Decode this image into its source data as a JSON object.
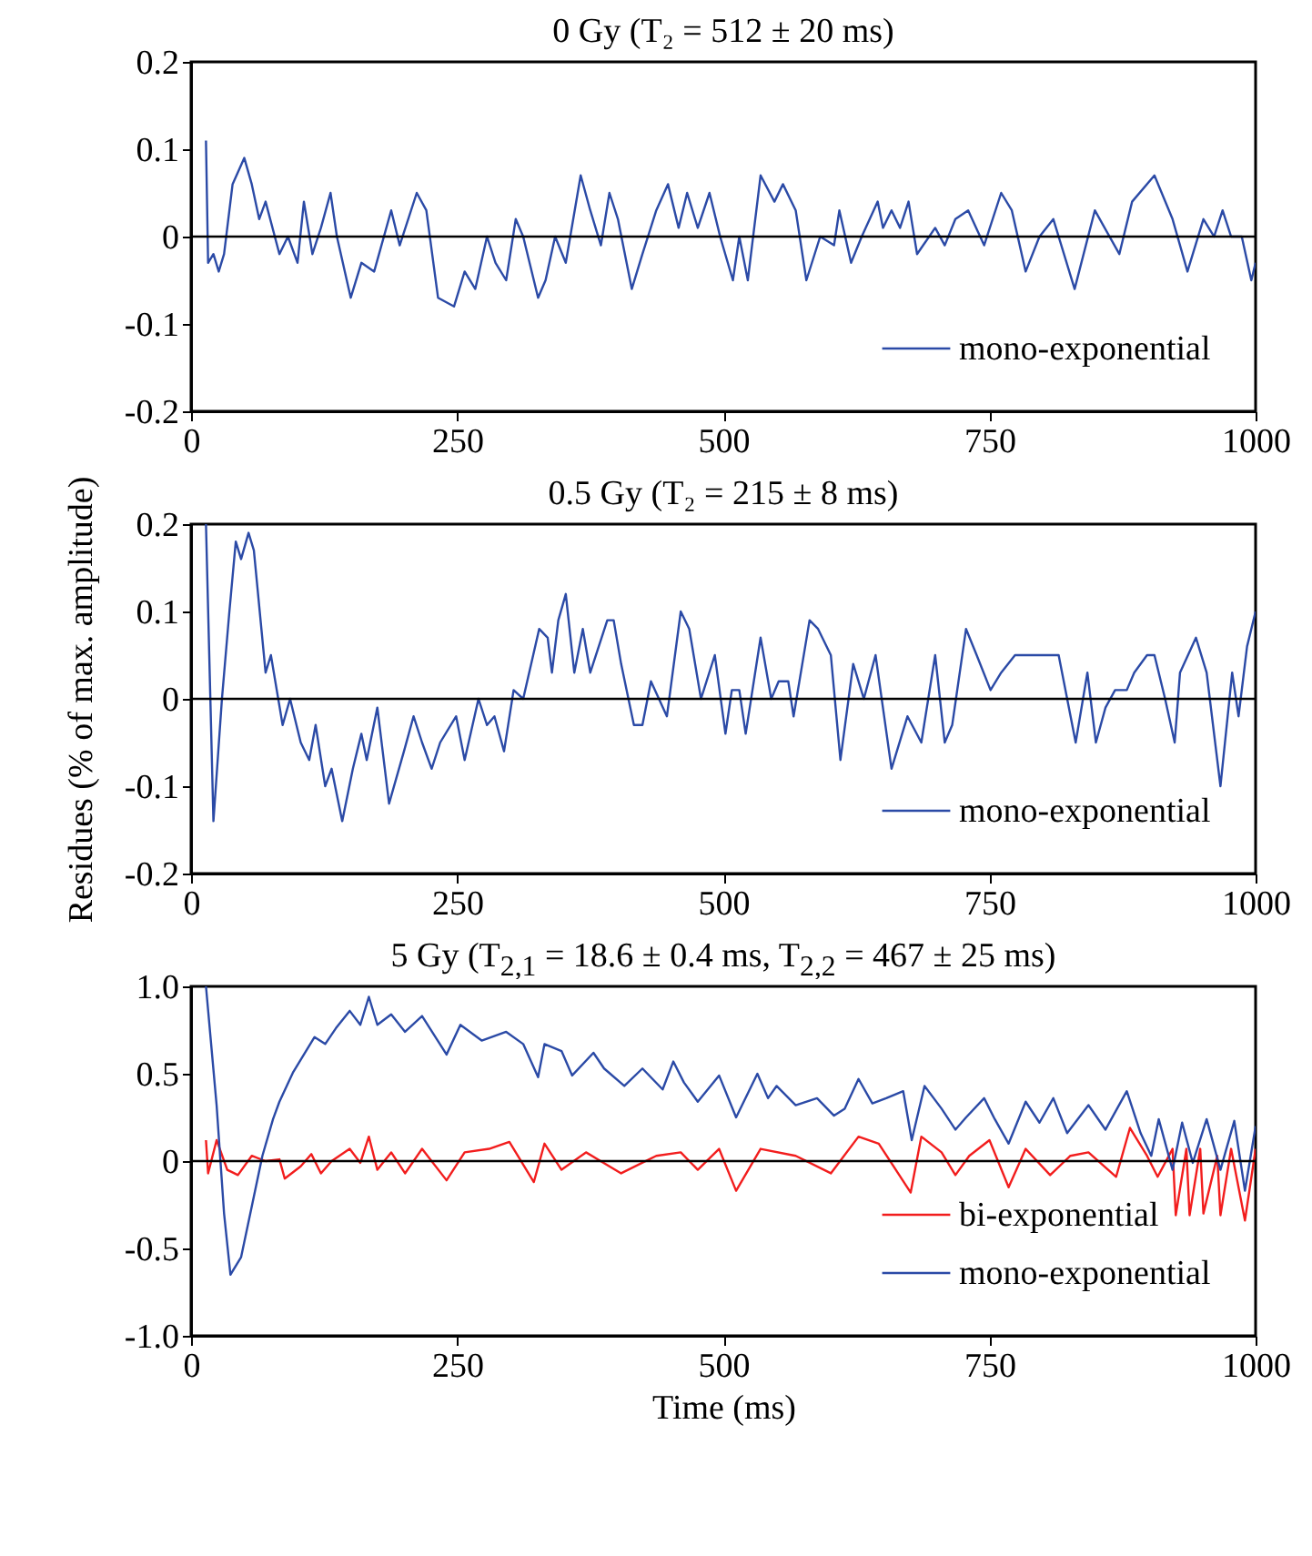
{
  "chart_data": [
    {
      "type": "line",
      "title": "0 Gy (T₂ = 512 ± 20 ms)",
      "xlim": [
        0,
        1000
      ],
      "xticks": [
        0,
        250,
        500,
        750,
        1000
      ],
      "ylim": [
        -0.2,
        0.2
      ],
      "yticks": [
        -0.2,
        -0.1,
        0,
        0.1,
        0.2
      ],
      "legend": "bottom right",
      "ref_lines": [
        {
          "axis": "y",
          "value": 0,
          "color": "#000000"
        }
      ],
      "series": [
        {
          "name": "mono-exponential",
          "color": "#2b4aa6",
          "x": [
            14,
            16,
            21,
            26,
            31,
            39,
            50,
            57,
            64,
            70,
            83,
            91,
            100,
            106,
            114,
            122,
            131,
            137,
            150,
            160,
            172,
            188,
            196,
            212,
            221,
            232,
            247,
            257,
            267,
            278,
            286,
            296,
            305,
            312,
            326,
            333,
            342,
            352,
            366,
            375,
            385,
            393,
            401,
            414,
            424,
            437,
            448,
            458,
            466,
            476,
            487,
            497,
            509,
            515,
            523,
            535,
            548,
            556,
            568,
            578,
            591,
            604,
            609,
            620,
            630,
            645,
            650,
            658,
            666,
            674,
            682,
            699,
            708,
            718,
            730,
            745,
            761,
            771,
            784,
            797,
            810,
            830,
            849,
            872,
            884,
            905,
            922,
            936,
            951,
            961,
            969,
            977,
            987,
            996,
            1000
          ],
          "values": [
            0.11,
            -0.03,
            -0.02,
            -0.04,
            -0.02,
            0.06,
            0.09,
            0.06,
            0.02,
            0.04,
            -0.02,
            0,
            -0.03,
            0.04,
            -0.02,
            0.01,
            0.05,
            0,
            -0.07,
            -0.03,
            -0.04,
            0.03,
            -0.01,
            0.05,
            0.03,
            -0.07,
            -0.08,
            -0.04,
            -0.06,
            0,
            -0.03,
            -0.05,
            0.02,
            0,
            -0.07,
            -0.05,
            0,
            -0.03,
            0.07,
            0.03,
            -0.01,
            0.05,
            0.02,
            -0.06,
            -0.02,
            0.03,
            0.06,
            0.01,
            0.05,
            0.01,
            0.05,
            0,
            -0.05,
            0,
            -0.05,
            0.07,
            0.04,
            0.06,
            0.03,
            -0.05,
            0,
            -0.01,
            0.03,
            -0.03,
            0,
            0.04,
            0.01,
            0.03,
            0.01,
            0.04,
            -0.02,
            0.01,
            -0.01,
            0.02,
            0.03,
            -0.01,
            0.05,
            0.03,
            -0.04,
            0,
            0.02,
            -0.06,
            0.03,
            -0.02,
            0.04,
            0.07,
            0.02,
            -0.04,
            0.02,
            0,
            0.03,
            0,
            0,
            -0.05,
            -0.03
          ]
        }
      ]
    },
    {
      "type": "line",
      "title": "0.5 Gy (T₂ = 215 ± 8 ms)",
      "ylabel": "Residues (% of max. amplitude)",
      "xlim": [
        0,
        1000
      ],
      "xticks": [
        0,
        250,
        500,
        750,
        1000
      ],
      "ylim": [
        -0.2,
        0.2
      ],
      "yticks": [
        -0.2,
        -0.1,
        0,
        0.1,
        0.2
      ],
      "legend": "bottom right",
      "ref_lines": [
        {
          "axis": "y",
          "value": 0,
          "color": "#000000"
        }
      ],
      "series": [
        {
          "name": "mono-exponential",
          "color": "#2b4aa6",
          "x": [
            14,
            21,
            29,
            36,
            42,
            47,
            54,
            59,
            70,
            75,
            86,
            93,
            103,
            111,
            117,
            126,
            132,
            142,
            152,
            160,
            165,
            175,
            186,
            200,
            209,
            217,
            226,
            234,
            249,
            257,
            270,
            278,
            285,
            294,
            303,
            312,
            327,
            335,
            339,
            345,
            352,
            360,
            368,
            375,
            391,
            397,
            404,
            416,
            424,
            432,
            447,
            460,
            468,
            479,
            492,
            502,
            508,
            515,
            521,
            535,
            545,
            552,
            561,
            566,
            581,
            589,
            601,
            610,
            622,
            632,
            643,
            658,
            673,
            686,
            699,
            708,
            715,
            728,
            738,
            751,
            761,
            774,
            804,
            815,
            831,
            842,
            850,
            859,
            868,
            879,
            886,
            898,
            905,
            915,
            924,
            929,
            944,
            954,
            967,
            978,
            984,
            992,
            1000
          ],
          "values": [
            0.2,
            -0.14,
            0,
            0.1,
            0.18,
            0.16,
            0.19,
            0.17,
            0.03,
            0.05,
            -0.03,
            0,
            -0.05,
            -0.07,
            -0.03,
            -0.1,
            -0.08,
            -0.14,
            -0.08,
            -0.04,
            -0.07,
            -0.01,
            -0.12,
            -0.06,
            -0.02,
            -0.05,
            -0.08,
            -0.05,
            -0.02,
            -0.07,
            0,
            -0.03,
            -0.02,
            -0.06,
            0.01,
            0,
            0.08,
            0.07,
            0.03,
            0.09,
            0.12,
            0.03,
            0.08,
            0.03,
            0.09,
            0.09,
            0.04,
            -0.03,
            -0.03,
            0.02,
            -0.02,
            0.1,
            0.08,
            0,
            0.05,
            -0.04,
            0.01,
            0.01,
            -0.04,
            0.07,
            0,
            0.02,
            0.02,
            -0.02,
            0.09,
            0.08,
            0.05,
            -0.07,
            0.04,
            0,
            0.05,
            -0.08,
            -0.02,
            -0.05,
            0.05,
            -0.05,
            -0.03,
            0.08,
            0.05,
            0.01,
            0.03,
            0.05,
            0.05,
            0.05,
            -0.05,
            0.03,
            -0.05,
            -0.01,
            0.01,
            0.01,
            0.03,
            0.05,
            0.05,
            0,
            -0.05,
            0.03,
            0.07,
            0.03,
            -0.1,
            0.03,
            -0.02,
            0.06,
            0.1
          ]
        }
      ]
    },
    {
      "type": "line",
      "title": "5 Gy (T$_{2,1}$ = 18.6 ± 0.4 ms, T$_{2,2}$ = 467 ± 25 ms)",
      "xlabel": "Time (ms)",
      "xlim": [
        0,
        1000
      ],
      "xticks": [
        0,
        250,
        500,
        750,
        1000
      ],
      "ylim": [
        -1,
        1
      ],
      "yticks": [
        {
          "value": -1,
          "label": "-1.0"
        },
        {
          "value": -0.5,
          "label": "-0.5"
        },
        {
          "value": 0,
          "label": "0"
        },
        {
          "value": 0.5,
          "label": "0.5"
        },
        {
          "value": 1,
          "label": "1.0"
        }
      ],
      "legend": "bottom right",
      "ref_lines": [
        {
          "axis": "y",
          "value": 0,
          "color": "#000000"
        }
      ],
      "series": [
        {
          "name": "bi-exponential",
          "color": "#f21d1d",
          "x": [
            14,
            16,
            24,
            34,
            44,
            57,
            70,
            83,
            88,
            103,
            113,
            122,
            132,
            149,
            159,
            167,
            175,
            188,
            201,
            217,
            240,
            257,
            280,
            299,
            322,
            332,
            348,
            371,
            404,
            437,
            460,
            476,
            496,
            512,
            535,
            568,
            601,
            627,
            646,
            676,
            686,
            705,
            718,
            731,
            750,
            768,
            784,
            807,
            826,
            843,
            869,
            882,
            898,
            908,
            922,
            925,
            935,
            938,
            948,
            951,
            964,
            967,
            977,
            990,
            1000
          ],
          "values": [
            0.12,
            -0.07,
            0.12,
            -0.05,
            -0.08,
            0.03,
            0,
            0.01,
            -0.1,
            -0.03,
            0.04,
            -0.07,
            0,
            0.07,
            -0.01,
            0.14,
            -0.05,
            0.05,
            -0.07,
            0.07,
            -0.11,
            0.05,
            0.07,
            0.11,
            -0.12,
            0.1,
            -0.05,
            0.05,
            -0.07,
            0.03,
            0.05,
            -0.05,
            0.07,
            -0.17,
            0.07,
            0.03,
            -0.07,
            0.14,
            0.1,
            -0.18,
            0.14,
            0.05,
            -0.08,
            0.03,
            0.12,
            -0.15,
            0.07,
            -0.08,
            0.03,
            0.05,
            -0.09,
            0.19,
            0.03,
            -0.09,
            0.07,
            -0.31,
            0.07,
            -0.31,
            0.07,
            -0.3,
            0.03,
            -0.31,
            0.07,
            -0.34,
            0.07
          ]
        },
        {
          "name": "mono-exponential",
          "color": "#2b4aa6",
          "x": [
            14,
            24,
            31,
            37,
            47,
            57,
            67,
            77,
            83,
            96,
            116,
            126,
            136,
            149,
            159,
            167,
            175,
            188,
            201,
            217,
            240,
            253,
            273,
            296,
            312,
            326,
            332,
            348,
            358,
            378,
            388,
            407,
            424,
            443,
            453,
            463,
            476,
            496,
            512,
            532,
            542,
            550,
            568,
            588,
            604,
            614,
            627,
            640,
            653,
            669,
            677,
            689,
            705,
            718,
            728,
            745,
            755,
            768,
            784,
            797,
            810,
            823,
            843,
            859,
            879,
            892,
            902,
            909,
            922,
            931,
            941,
            954,
            967,
            980,
            990,
            1000
          ],
          "values": [
            1.0,
            0.32,
            -0.3,
            -0.65,
            -0.55,
            -0.26,
            0.03,
            0.24,
            0.34,
            0.51,
            0.71,
            0.67,
            0.76,
            0.86,
            0.78,
            0.94,
            0.78,
            0.84,
            0.74,
            0.83,
            0.61,
            0.78,
            0.69,
            0.74,
            0.67,
            0.48,
            0.67,
            0.63,
            0.49,
            0.62,
            0.53,
            0.43,
            0.53,
            0.41,
            0.57,
            0.45,
            0.34,
            0.49,
            0.25,
            0.5,
            0.36,
            0.43,
            0.32,
            0.36,
            0.26,
            0.3,
            0.47,
            0.33,
            0.36,
            0.4,
            0.12,
            0.43,
            0.3,
            0.18,
            0.25,
            0.36,
            0.24,
            0.1,
            0.34,
            0.22,
            0.36,
            0.16,
            0.32,
            0.18,
            0.4,
            0.16,
            0.03,
            0.24,
            -0.05,
            0.22,
            -0.01,
            0.24,
            -0.05,
            0.23,
            -0.17,
            0.2
          ]
        }
      ]
    }
  ]
}
